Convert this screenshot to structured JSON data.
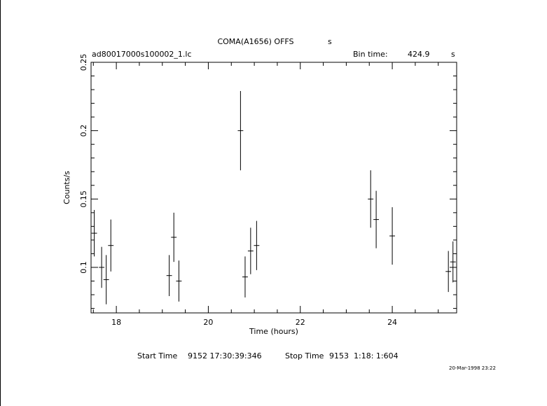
{
  "chart_data": {
    "type": "scatter",
    "title": "COMA(A1656) OFFS",
    "title_suffix": "s",
    "file_label": "ad80017000s100002_1.lc",
    "bin_time_label": "Bin time:",
    "bin_time_value": "424.9",
    "bin_time_unit": "s",
    "xlabel": "Time (hours)",
    "ylabel": "Counts/s",
    "xlim": [
      17.45,
      25.4
    ],
    "ylim": [
      0.0667,
      0.25
    ],
    "xticks": [
      18,
      20,
      22,
      24
    ],
    "yticks": [
      0.1,
      0.15,
      0.2,
      0.25
    ],
    "start_time_label": "Start Time",
    "start_time_value": "9152 17:30:39:346",
    "stop_time_label": "Stop Time",
    "stop_time_value": "9153  1:18: 1:604",
    "date_stamp": "20-Mar-1998 23:22",
    "points": [
      {
        "x": 17.52,
        "y": 0.125,
        "err": 0.017,
        "xerr": 0.06
      },
      {
        "x": 17.68,
        "y": 0.1,
        "err": 0.015,
        "xerr": 0.06
      },
      {
        "x": 17.78,
        "y": 0.091,
        "err": 0.018,
        "xerr": 0.06
      },
      {
        "x": 17.88,
        "y": 0.116,
        "err": 0.019,
        "xerr": 0.06
      },
      {
        "x": 19.15,
        "y": 0.094,
        "err": 0.015,
        "xerr": 0.06
      },
      {
        "x": 19.25,
        "y": 0.122,
        "err": 0.018,
        "xerr": 0.06
      },
      {
        "x": 19.36,
        "y": 0.09,
        "err": 0.015,
        "xerr": 0.06
      },
      {
        "x": 20.7,
        "y": 0.2,
        "err": 0.029,
        "xerr": 0.06
      },
      {
        "x": 20.8,
        "y": 0.093,
        "err": 0.015,
        "xerr": 0.06
      },
      {
        "x": 20.92,
        "y": 0.112,
        "err": 0.017,
        "xerr": 0.06
      },
      {
        "x": 21.05,
        "y": 0.116,
        "err": 0.018,
        "xerr": 0.06
      },
      {
        "x": 23.53,
        "y": 0.15,
        "err": 0.021,
        "xerr": 0.06
      },
      {
        "x": 23.65,
        "y": 0.135,
        "err": 0.021,
        "xerr": 0.06
      },
      {
        "x": 24.0,
        "y": 0.123,
        "err": 0.021,
        "xerr": 0.06
      },
      {
        "x": 25.22,
        "y": 0.097,
        "err": 0.015,
        "xerr": 0.06
      },
      {
        "x": 25.32,
        "y": 0.104,
        "err": 0.015,
        "xerr": 0.06
      }
    ]
  }
}
